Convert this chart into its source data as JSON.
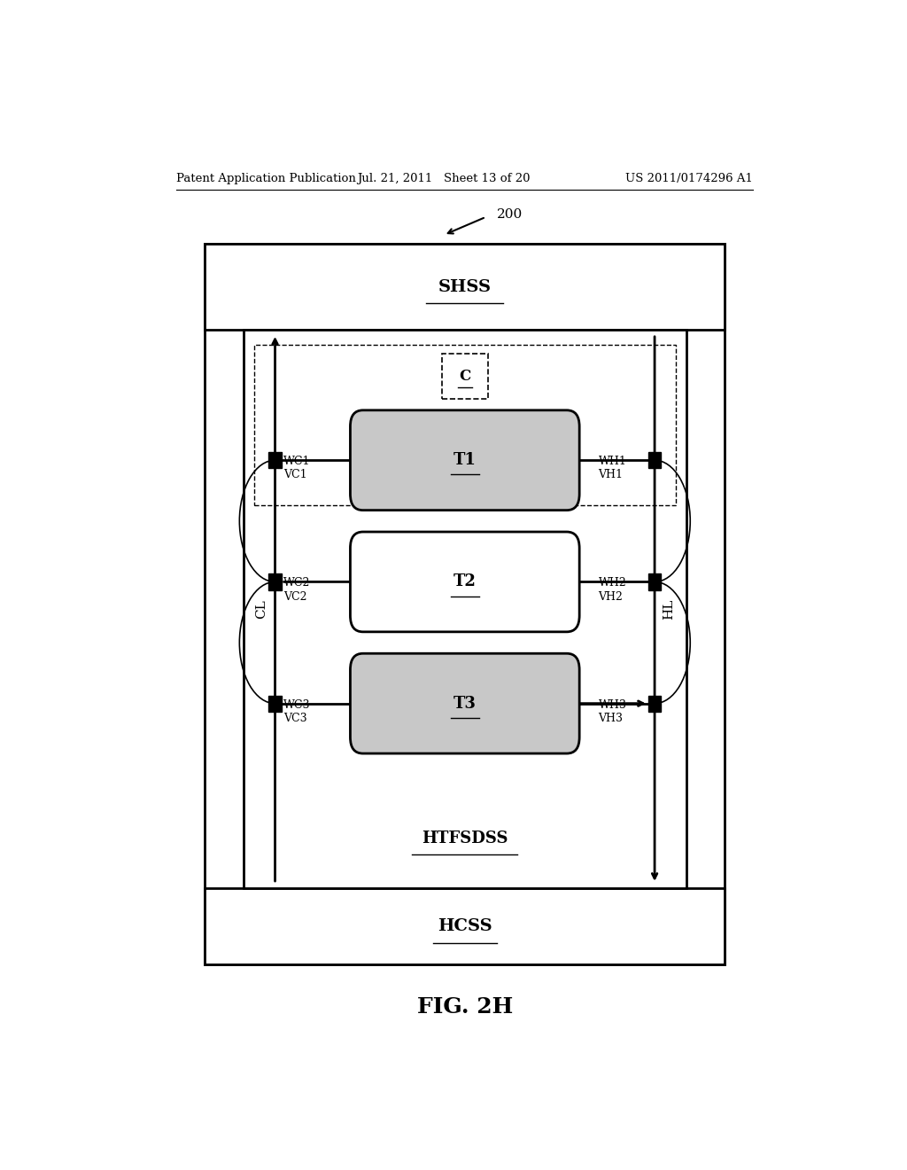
{
  "header_left": "Patent Application Publication",
  "header_mid": "Jul. 21, 2011   Sheet 13 of 20",
  "header_right": "US 2011/0174296 A1",
  "fig_label": "FIG. 2H",
  "ref_num": "200",
  "shss_label": "SHSS",
  "hcss_label": "HCSS",
  "htfsdss_label": "HTFSDSS",
  "c_label": "C",
  "t1_label": "T1",
  "t2_label": "T2",
  "t3_label": "T3",
  "cl_label": "CL",
  "hl_label": "HL",
  "vc1": "VC1",
  "wc1": "WC1",
  "vc2": "VC2",
  "wc2": "WC2",
  "vc3": "VC3",
  "wc3": "WC3",
  "vh1": "VH1",
  "wh1": "WH1",
  "vh2": "VH2",
  "wh2": "WH2",
  "vh3": "VH3",
  "wh3": "WH3",
  "bg_color": "#ffffff",
  "t1_fill": "#c8c8c8",
  "t3_fill": "#c8c8c8",
  "t2_fill": "#ffffff"
}
